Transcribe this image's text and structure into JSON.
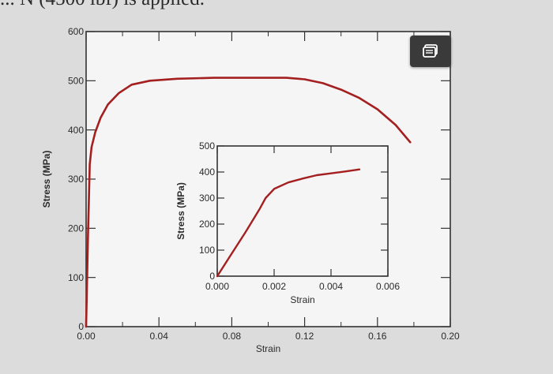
{
  "page": {
    "header_text": "... N (4500 lbf) is applied."
  },
  "toolbar": {
    "copy_icon": "copy-icon"
  },
  "colors": {
    "curve": "#a41f1f",
    "axis": "#333333",
    "plot_bg": "#f5f5f5",
    "page_bg": "#dcdcdc",
    "button": "#3a3a3a"
  },
  "chart_data": [
    {
      "type": "line",
      "xlabel": "Strain",
      "ylabel": "Stress (MPa)",
      "xlim": [
        0,
        0.2
      ],
      "ylim": [
        0,
        600
      ],
      "x_ticks": [
        0,
        0.04,
        0.08,
        0.12,
        0.16,
        0.2
      ],
      "x_tick_labels": [
        "0.00",
        "0.04",
        "0.08",
        "0.12",
        "0.16",
        "0.20"
      ],
      "y_ticks": [
        0,
        100,
        200,
        300,
        400,
        500,
        600
      ],
      "y_tick_labels": [
        "0",
        "100",
        "200",
        "300",
        "400",
        "500",
        "600"
      ],
      "grid": false,
      "series": [
        {
          "x": [
            0,
            0.001,
            0.002,
            0.003,
            0.005,
            0.008,
            0.012,
            0.018,
            0.025,
            0.035,
            0.05,
            0.07,
            0.09,
            0.11,
            0.12,
            0.13,
            0.14,
            0.15,
            0.16,
            0.17,
            0.178
          ],
          "y": [
            0,
            180,
            330,
            365,
            395,
            425,
            452,
            475,
            492,
            500,
            504,
            506,
            506,
            506,
            503,
            495,
            482,
            465,
            442,
            410,
            375
          ]
        }
      ]
    },
    {
      "type": "line",
      "xlabel": "Strain",
      "ylabel": "Stress (MPa)",
      "xlim": [
        0,
        0.006
      ],
      "ylim": [
        0,
        500
      ],
      "x_ticks": [
        0,
        0.002,
        0.004,
        0.006
      ],
      "x_tick_labels": [
        "0.000",
        "0.002",
        "0.004",
        "0.006"
      ],
      "y_ticks": [
        0,
        100,
        200,
        300,
        400,
        500
      ],
      "y_tick_labels": [
        "0",
        "100",
        "200",
        "300",
        "400",
        "500"
      ],
      "grid": false,
      "series": [
        {
          "x": [
            0,
            0.0005,
            0.001,
            0.0015,
            0.0017,
            0.002,
            0.0025,
            0.003,
            0.0035,
            0.004,
            0.0045,
            0.005
          ],
          "y": [
            0,
            85,
            170,
            260,
            300,
            335,
            360,
            375,
            388,
            395,
            402,
            410
          ]
        }
      ]
    }
  ]
}
